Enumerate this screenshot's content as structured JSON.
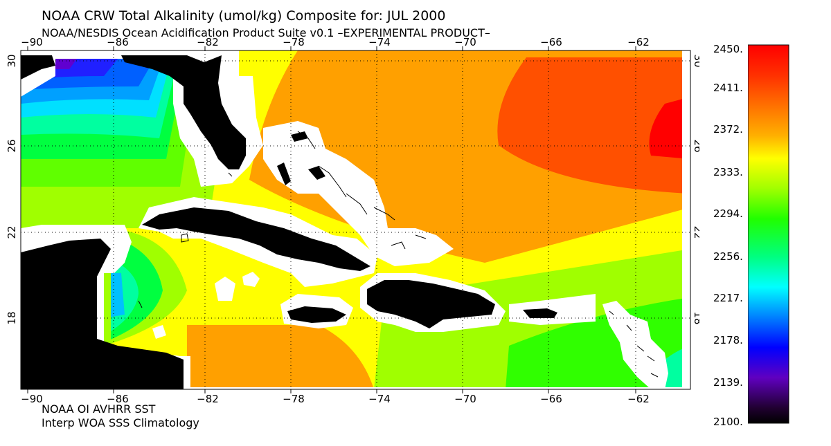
{
  "header": {
    "title": "NOAA CRW Total Alkalinity (umol/kg) Composite for: JUL 2000",
    "subtitle": "NOAA/NESDIS Ocean Acidification Product Suite  v0.1 –EXPERIMENTAL PRODUCT–"
  },
  "footer": {
    "line1": "NOAA OI AVHRR SST",
    "line2": "Interp WOA SSS Climatology"
  },
  "map": {
    "lon_ticks": [
      "−90",
      "−86",
      "−82",
      "−78",
      "−74",
      "−70",
      "−66",
      "−62"
    ],
    "lat_ticks": [
      "30",
      "26",
      "22",
      "18"
    ],
    "land_color": "#000000",
    "mask_color": "#ffffff"
  },
  "colorbar": {
    "labels": [
      "2450.",
      "2411.",
      "2372.",
      "2333.",
      "2294.",
      "2256.",
      "2217.",
      "2178.",
      "2139.",
      "2100."
    ],
    "min": 2100,
    "max": 2450,
    "colors": {
      "red": "#ff0000",
      "orange_red": "#ff5000",
      "orange": "#ffa000",
      "yellow": "#ffff00",
      "yellow_green": "#a0ff00",
      "green": "#00ff00",
      "cyan": "#00ffff",
      "blue": "#0060ff",
      "navy": "#0000ff",
      "purple": "#7000c0",
      "black": "#000000"
    }
  }
}
